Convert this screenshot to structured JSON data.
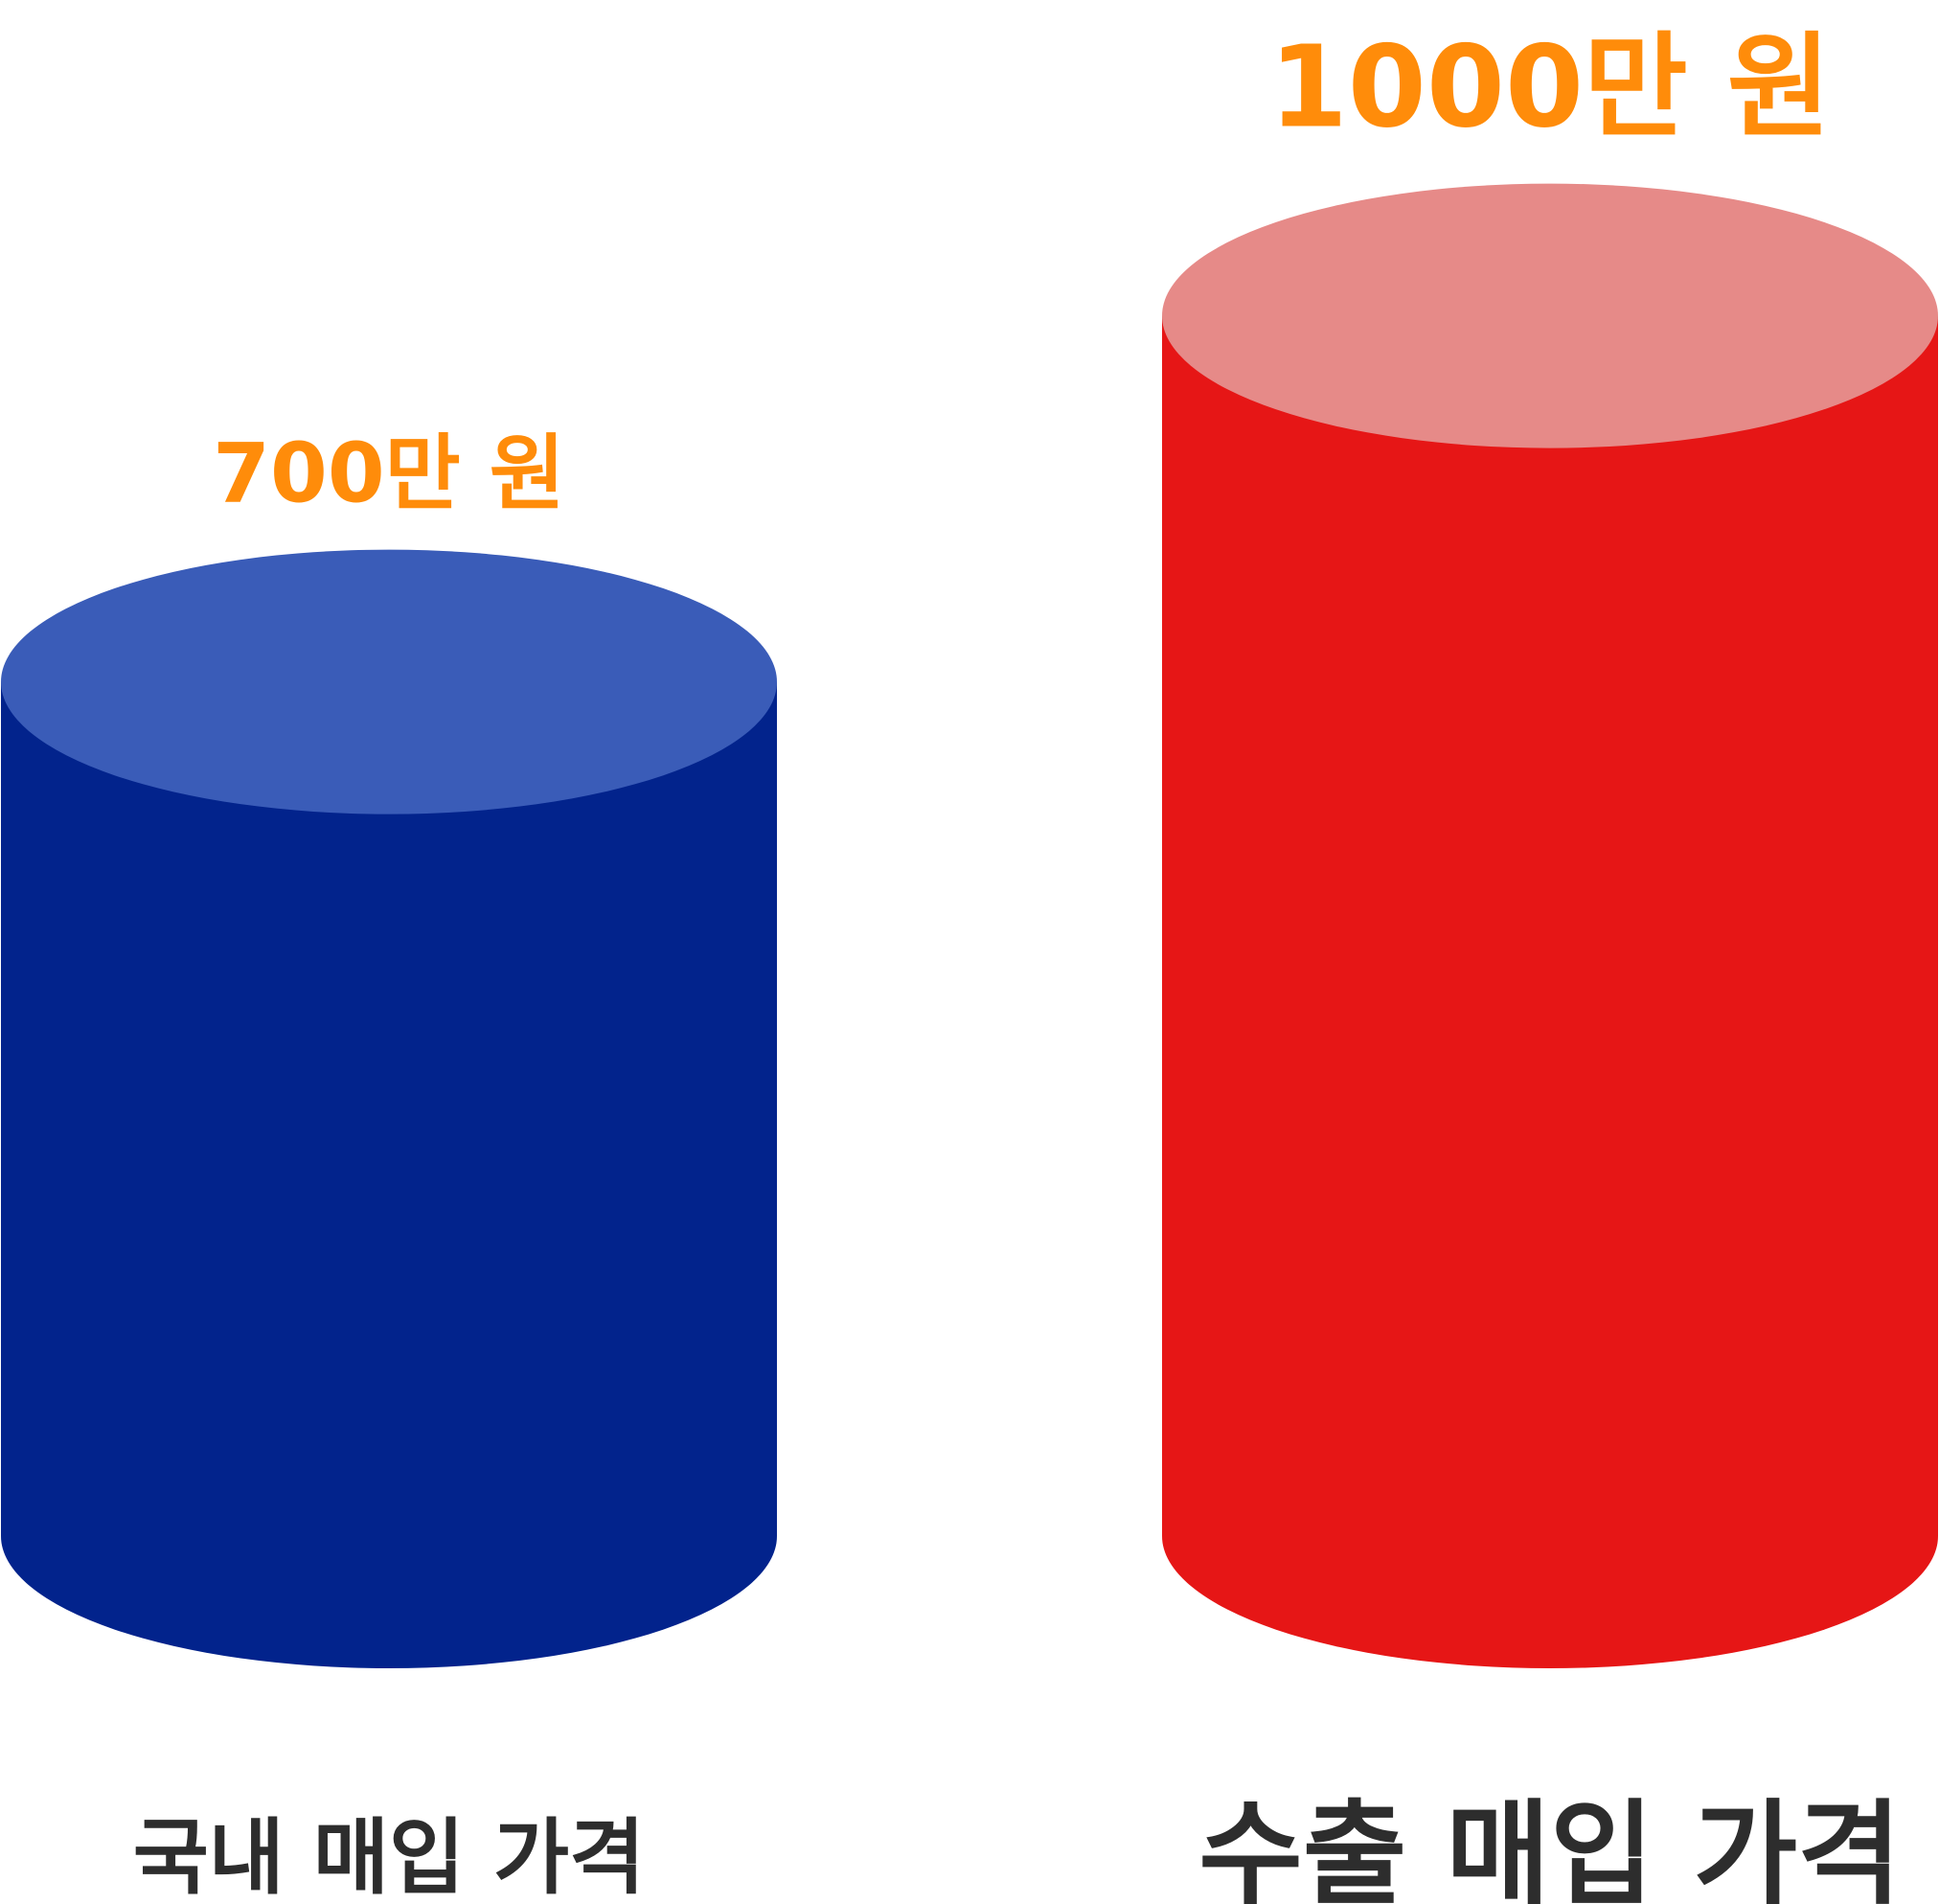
{
  "chart_data": {
    "type": "bar",
    "style": "3d-cylinder",
    "categories": [
      "국내 매입 가격",
      "수출 매입 가격"
    ],
    "values": [
      700,
      1000
    ],
    "value_labels": [
      "700만 원",
      "1000만 원"
    ],
    "unit": "만 원",
    "colors": {
      "bars": [
        {
          "body": "#02238c",
          "top": "#3a5cb8"
        },
        {
          "body": "#e61616",
          "top": "#e68a88"
        }
      ],
      "value_label": "#ff8c0a",
      "category_label": "#2d2d2d"
    },
    "title": "",
    "xlabel": "",
    "ylabel": "",
    "grid": false,
    "legend": "none"
  }
}
